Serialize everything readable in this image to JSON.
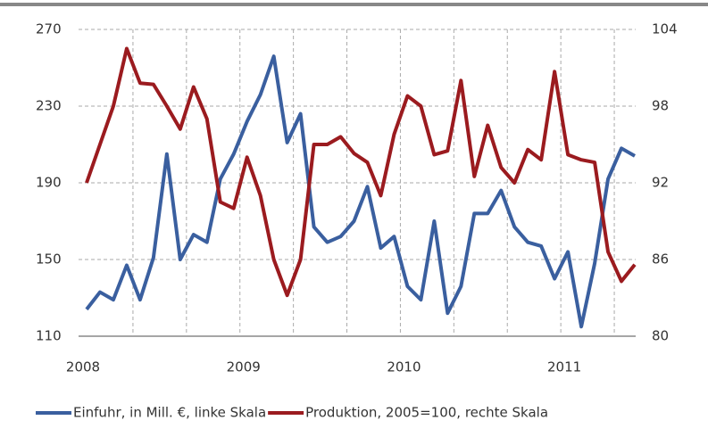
{
  "chart_data": {
    "type": "line",
    "categories": [
      "2008",
      null,
      null,
      null,
      null,
      null,
      null,
      null,
      null,
      null,
      null,
      null,
      "2009",
      null,
      null,
      null,
      null,
      null,
      null,
      null,
      null,
      null,
      null,
      null,
      "2010",
      null,
      null,
      null,
      null,
      null,
      null,
      null,
      null,
      null,
      null,
      null,
      "2011",
      null,
      null,
      null,
      null,
      null
    ],
    "series": [
      {
        "name": "Einfuhr, in Mill. €, linke Skala",
        "color": "#3a5f9f",
        "axis": "y",
        "values": [
          124,
          133,
          129,
          147,
          129,
          151,
          205,
          150,
          163,
          159,
          192,
          205,
          222,
          236,
          256,
          211,
          226,
          167,
          159,
          162,
          170,
          188,
          156,
          162,
          136,
          129,
          170,
          122,
          136,
          174,
          174,
          186,
          167,
          159,
          157,
          140,
          154,
          115,
          148,
          192,
          208,
          204
        ]
      },
      {
        "name": "Produktion, 2005=100, rechte Skala",
        "color": "#9b1b1f",
        "axis": "y2",
        "values": [
          92,
          95,
          98,
          102.5,
          99.8,
          99.7,
          98,
          96.2,
          99.5,
          97,
          90.5,
          90,
          94,
          91,
          86,
          83.2,
          86,
          95,
          95,
          95.6,
          94.3,
          93.6,
          91,
          95.8,
          98.8,
          98,
          94.2,
          94.5,
          100,
          92.5,
          96.5,
          93.2,
          92,
          94.6,
          93.8,
          100.7,
          94.2,
          93.8,
          93.6,
          86.6,
          84.3,
          85.6
        ]
      }
    ],
    "ylim": [
      110,
      270
    ],
    "yticks": [
      110,
      150,
      190,
      230,
      270
    ],
    "y2lim": [
      80,
      104
    ],
    "y2ticks": [
      80,
      86,
      92,
      98,
      104
    ],
    "grid": true
  }
}
